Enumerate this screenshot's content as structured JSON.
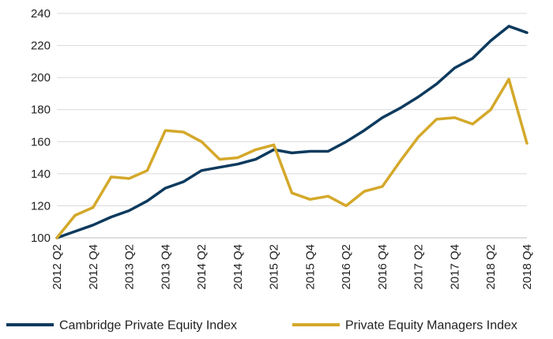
{
  "chart_data": {
    "type": "line",
    "title": "",
    "xlabel": "",
    "ylabel": "",
    "ylim": [
      100,
      240
    ],
    "yticks": [
      100,
      120,
      140,
      160,
      180,
      200,
      220,
      240
    ],
    "grid": true,
    "legend": "bottom",
    "x": [
      "2012 Q2",
      "2012 Q3",
      "2012 Q4",
      "2013 Q1",
      "2013 Q2",
      "2013 Q3",
      "2013 Q4",
      "2014 Q1",
      "2014 Q2",
      "2014 Q3",
      "2014 Q4",
      "2015 Q1",
      "2015 Q2",
      "2015 Q3",
      "2015 Q4",
      "2016 Q1",
      "2016 Q2",
      "2016 Q3",
      "2016 Q4",
      "2017 Q1",
      "2017 Q2",
      "2017 Q3",
      "2017 Q4",
      "2018 Q1",
      "2018 Q2",
      "2018 Q3",
      "2018 Q4"
    ],
    "xtick_labels": [
      "2012 Q2",
      "2012 Q4",
      "2013 Q2",
      "2013 Q4",
      "2014 Q2",
      "2014 Q4",
      "2015 Q2",
      "2015 Q4",
      "2016 Q2",
      "2016 Q4",
      "2017 Q2",
      "2017 Q4",
      "2018 Q2",
      "2018 Q4"
    ],
    "series": [
      {
        "name": "Cambridge Private Equity Index",
        "color": "#0d3a5e",
        "values": [
          100,
          104,
          108,
          113,
          117,
          123,
          131,
          135,
          142,
          144,
          146,
          149,
          155,
          153,
          154,
          154,
          160,
          167,
          175,
          181,
          188,
          196,
          206,
          212,
          223,
          232,
          228
        ]
      },
      {
        "name": "Private Equity Managers Index",
        "color": "#d4a82a",
        "values": [
          100,
          114,
          119,
          138,
          137,
          142,
          167,
          166,
          160,
          149,
          150,
          155,
          158,
          128,
          124,
          126,
          120,
          129,
          132,
          148,
          163,
          174,
          175,
          171,
          180,
          199,
          159
        ]
      }
    ]
  }
}
